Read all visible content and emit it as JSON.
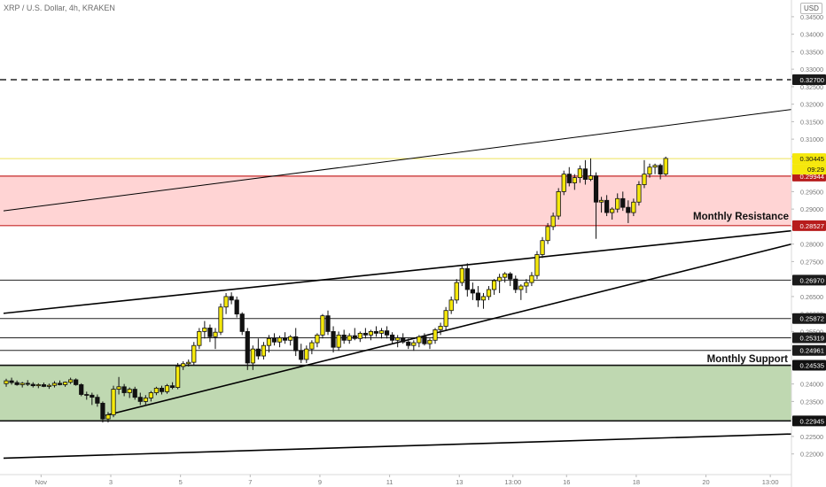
{
  "header": {
    "symbol_title": "XRP / U.S. Dollar, 4h, KRAKEN",
    "currency": "USD"
  },
  "colors": {
    "up": "#f5e80c",
    "down": "#f5e80c",
    "resistance_zone": "#ffcccc",
    "support_zone": "#b8d4a8",
    "resistance_line": "#c62828",
    "support_line": "#1b5e20",
    "last_price_bg": "#f5e80c"
  },
  "chart_data": {
    "type": "candlestick",
    "symbol": "XRP / U.S. Dollar",
    "interval": "4h",
    "exchange": "KRAKEN",
    "y_ticks": [
      "0.34500",
      "0.34000",
      "0.33500",
      "0.33000",
      "0.32500",
      "0.32000",
      "0.31500",
      "0.31000",
      "0.30500",
      "0.30000",
      "0.29500",
      "0.29000",
      "0.28500",
      "0.28000",
      "0.27500",
      "0.27000",
      "0.26500",
      "0.26000",
      "0.25500",
      "0.25000",
      "0.24500",
      "0.24000",
      "0.23500",
      "0.23000",
      "0.22500",
      "0.22000"
    ],
    "y_tick_values": [
      0.345,
      0.34,
      0.335,
      0.33,
      0.325,
      0.32,
      0.315,
      0.31,
      0.305,
      0.3,
      0.295,
      0.29,
      0.285,
      0.28,
      0.275,
      0.27,
      0.265,
      0.26,
      0.255,
      0.25,
      0.245,
      0.24,
      0.235,
      0.23,
      0.225,
      0.22
    ],
    "x_ticks": [
      "Nov",
      "3",
      "5",
      "7",
      "9",
      "11",
      "13",
      "13:00",
      "16",
      "18",
      "20",
      "13:00"
    ],
    "x_tick_slots": [
      7,
      20,
      33,
      46,
      59,
      72,
      85,
      95,
      105,
      118,
      131,
      143
    ],
    "price_levels": [
      {
        "label": "0.32700",
        "value": 0.327,
        "style": "dashed"
      },
      {
        "label": "0.29944",
        "value": 0.29944,
        "style": "resistance"
      },
      {
        "label": "0.28527",
        "value": 0.28527,
        "style": "resistance"
      },
      {
        "label": "0.26970",
        "value": 0.2697,
        "style": "solid"
      },
      {
        "label": "0.25872",
        "value": 0.25872,
        "style": "solid"
      },
      {
        "label": "0.25319",
        "value": 0.25319,
        "style": "solid"
      },
      {
        "label": "0.24961",
        "value": 0.24961,
        "style": "solid"
      },
      {
        "label": "0.24535",
        "value": 0.24535,
        "style": "support"
      },
      {
        "label": "0.22945",
        "value": 0.22945,
        "style": "support"
      }
    ],
    "last_price": {
      "label": "0.30445",
      "value": 0.30445,
      "countdown": "09:29"
    },
    "zones": [
      {
        "name": "Monthly Resistance",
        "low": 0.28527,
        "high": 0.29944
      },
      {
        "name": "Monthly Support",
        "low": 0.22945,
        "high": 0.24535
      }
    ],
    "trendlines": [
      {
        "name": "upper channel",
        "from": [
          0,
          0.2895
        ],
        "to": [
          147,
          0.3185
        ],
        "width": 1
      },
      {
        "name": "rising resistance",
        "from": [
          0,
          0.2602
        ],
        "to": [
          147,
          0.2838
        ],
        "width": 1.6
      },
      {
        "name": "rising support",
        "from": [
          19,
          0.231
        ],
        "to": [
          147,
          0.28
        ],
        "width": 1.6
      },
      {
        "name": "lower channel",
        "from": [
          0,
          0.2188
        ],
        "to": [
          147,
          0.2257
        ],
        "width": 1.6
      }
    ],
    "candles": [
      [
        0.2401,
        0.2415,
        0.2392,
        0.2409
      ],
      [
        0.2409,
        0.2418,
        0.2398,
        0.2404
      ],
      [
        0.2404,
        0.241,
        0.2395,
        0.2398
      ],
      [
        0.2398,
        0.2406,
        0.239,
        0.2402
      ],
      [
        0.2402,
        0.2411,
        0.2394,
        0.2399
      ],
      [
        0.2399,
        0.2405,
        0.239,
        0.2395
      ],
      [
        0.2395,
        0.2402,
        0.2388,
        0.2398
      ],
      [
        0.2398,
        0.2404,
        0.2391,
        0.2393
      ],
      [
        0.2393,
        0.2401,
        0.2386,
        0.2396
      ],
      [
        0.2396,
        0.2408,
        0.239,
        0.2402
      ],
      [
        0.2402,
        0.241,
        0.2396,
        0.2398
      ],
      [
        0.2398,
        0.2407,
        0.2392,
        0.2405
      ],
      [
        0.2405,
        0.2418,
        0.24,
        0.2412
      ],
      [
        0.2412,
        0.2416,
        0.2395,
        0.2398
      ],
      [
        0.2398,
        0.2402,
        0.2365,
        0.237
      ],
      [
        0.237,
        0.2378,
        0.2355,
        0.2368
      ],
      [
        0.2368,
        0.2375,
        0.234,
        0.2362
      ],
      [
        0.2362,
        0.237,
        0.2335,
        0.2345
      ],
      [
        0.2345,
        0.235,
        0.229,
        0.23
      ],
      [
        0.23,
        0.232,
        0.229,
        0.2312
      ],
      [
        0.2312,
        0.2395,
        0.2305,
        0.2385
      ],
      [
        0.2385,
        0.242,
        0.237,
        0.2392
      ],
      [
        0.2392,
        0.24,
        0.2365,
        0.2375
      ],
      [
        0.2375,
        0.239,
        0.236,
        0.2385
      ],
      [
        0.2385,
        0.2392,
        0.2355,
        0.2362
      ],
      [
        0.2362,
        0.2375,
        0.234,
        0.235
      ],
      [
        0.235,
        0.2368,
        0.2338,
        0.236
      ],
      [
        0.236,
        0.238,
        0.235,
        0.2375
      ],
      [
        0.2375,
        0.2392,
        0.2368,
        0.2388
      ],
      [
        0.2388,
        0.2395,
        0.237,
        0.2378
      ],
      [
        0.2378,
        0.24,
        0.2372,
        0.2395
      ],
      [
        0.2395,
        0.2405,
        0.2385,
        0.239
      ],
      [
        0.239,
        0.246,
        0.2385,
        0.245
      ],
      [
        0.245,
        0.2465,
        0.244,
        0.2458
      ],
      [
        0.2458,
        0.247,
        0.245,
        0.2462
      ],
      [
        0.2462,
        0.252,
        0.2455,
        0.251
      ],
      [
        0.251,
        0.256,
        0.25,
        0.255
      ],
      [
        0.255,
        0.258,
        0.253,
        0.256
      ],
      [
        0.256,
        0.257,
        0.252,
        0.2535
      ],
      [
        0.2535,
        0.256,
        0.25,
        0.2548
      ],
      [
        0.2548,
        0.263,
        0.254,
        0.262
      ],
      [
        0.262,
        0.266,
        0.26,
        0.265
      ],
      [
        0.265,
        0.2662,
        0.2628,
        0.264
      ],
      [
        0.264,
        0.265,
        0.259,
        0.26
      ],
      [
        0.26,
        0.2605,
        0.254,
        0.255
      ],
      [
        0.255,
        0.256,
        0.244,
        0.246
      ],
      [
        0.246,
        0.251,
        0.244,
        0.25
      ],
      [
        0.25,
        0.253,
        0.247,
        0.248
      ],
      [
        0.248,
        0.252,
        0.247,
        0.251
      ],
      [
        0.251,
        0.254,
        0.249,
        0.253
      ],
      [
        0.253,
        0.2545,
        0.251,
        0.252
      ],
      [
        0.252,
        0.2538,
        0.2505,
        0.2532
      ],
      [
        0.2532,
        0.2548,
        0.2515,
        0.2525
      ],
      [
        0.2525,
        0.254,
        0.251,
        0.2535
      ],
      [
        0.2535,
        0.256,
        0.248,
        0.2495
      ],
      [
        0.2495,
        0.2515,
        0.246,
        0.247
      ],
      [
        0.247,
        0.251,
        0.246,
        0.25
      ],
      [
        0.25,
        0.2525,
        0.2485,
        0.2518
      ],
      [
        0.2518,
        0.2545,
        0.2505,
        0.254
      ],
      [
        0.254,
        0.26,
        0.253,
        0.2595
      ],
      [
        0.2595,
        0.261,
        0.254,
        0.255
      ],
      [
        0.255,
        0.2565,
        0.249,
        0.2505
      ],
      [
        0.2505,
        0.255,
        0.2495,
        0.254
      ],
      [
        0.254,
        0.2555,
        0.2515,
        0.2525
      ],
      [
        0.2525,
        0.2545,
        0.2515,
        0.2538
      ],
      [
        0.2538,
        0.256,
        0.2525,
        0.253
      ],
      [
        0.253,
        0.255,
        0.252,
        0.2545
      ],
      [
        0.2545,
        0.256,
        0.253,
        0.254
      ],
      [
        0.254,
        0.2555,
        0.2525,
        0.255
      ],
      [
        0.255,
        0.2565,
        0.2535,
        0.2545
      ],
      [
        0.2545,
        0.256,
        0.253,
        0.2552
      ],
      [
        0.2552,
        0.2565,
        0.253,
        0.254
      ],
      [
        0.254,
        0.2548,
        0.2515,
        0.2525
      ],
      [
        0.2525,
        0.254,
        0.2505,
        0.2532
      ],
      [
        0.2532,
        0.2545,
        0.2515,
        0.252
      ],
      [
        0.252,
        0.253,
        0.25,
        0.251
      ],
      [
        0.251,
        0.2525,
        0.2495,
        0.2518
      ],
      [
        0.2518,
        0.254,
        0.2505,
        0.2535
      ],
      [
        0.2535,
        0.2545,
        0.251,
        0.2515
      ],
      [
        0.2515,
        0.253,
        0.25,
        0.2525
      ],
      [
        0.2525,
        0.256,
        0.2515,
        0.2555
      ],
      [
        0.2555,
        0.2575,
        0.254,
        0.2565
      ],
      [
        0.2565,
        0.262,
        0.2555,
        0.261
      ],
      [
        0.261,
        0.265,
        0.26,
        0.264
      ],
      [
        0.264,
        0.27,
        0.263,
        0.269
      ],
      [
        0.269,
        0.274,
        0.268,
        0.273
      ],
      [
        0.273,
        0.2745,
        0.265,
        0.267
      ],
      [
        0.267,
        0.269,
        0.264,
        0.266
      ],
      [
        0.266,
        0.268,
        0.262,
        0.264
      ],
      [
        0.264,
        0.266,
        0.2615,
        0.265
      ],
      [
        0.265,
        0.268,
        0.264,
        0.267
      ],
      [
        0.267,
        0.27,
        0.2655,
        0.2695
      ],
      [
        0.2695,
        0.2715,
        0.266,
        0.2705
      ],
      [
        0.2705,
        0.272,
        0.269,
        0.2715
      ],
      [
        0.2715,
        0.272,
        0.268,
        0.27
      ],
      [
        0.27,
        0.271,
        0.266,
        0.267
      ],
      [
        0.267,
        0.2685,
        0.264,
        0.268
      ],
      [
        0.268,
        0.27,
        0.266,
        0.269
      ],
      [
        0.269,
        0.272,
        0.268,
        0.271
      ],
      [
        0.271,
        0.278,
        0.27,
        0.277
      ],
      [
        0.277,
        0.282,
        0.276,
        0.281
      ],
      [
        0.281,
        0.286,
        0.28,
        0.285
      ],
      [
        0.285,
        0.289,
        0.284,
        0.288
      ],
      [
        0.288,
        0.296,
        0.287,
        0.295
      ],
      [
        0.295,
        0.301,
        0.294,
        0.3
      ],
      [
        0.3,
        0.302,
        0.2965,
        0.2975
      ],
      [
        0.2975,
        0.3,
        0.2955,
        0.299
      ],
      [
        0.299,
        0.3025,
        0.2975,
        0.3015
      ],
      [
        0.3015,
        0.304,
        0.297,
        0.2985
      ],
      [
        0.2985,
        0.3045,
        0.298,
        0.2995
      ],
      [
        0.2995,
        0.3005,
        0.2815,
        0.292
      ],
      [
        0.292,
        0.2935,
        0.289,
        0.2925
      ],
      [
        0.2925,
        0.294,
        0.288,
        0.289
      ],
      [
        0.289,
        0.2905,
        0.287,
        0.29
      ],
      [
        0.29,
        0.2945,
        0.289,
        0.293
      ],
      [
        0.293,
        0.295,
        0.2895,
        0.2905
      ],
      [
        0.2905,
        0.2925,
        0.286,
        0.289
      ],
      [
        0.289,
        0.293,
        0.288,
        0.292
      ],
      [
        0.292,
        0.298,
        0.291,
        0.297
      ],
      [
        0.297,
        0.304,
        0.296,
        0.3
      ],
      [
        0.3,
        0.303,
        0.299,
        0.302
      ],
      [
        0.302,
        0.303,
        0.3,
        0.3025
      ],
      [
        0.3025,
        0.303,
        0.2985,
        0.3
      ],
      [
        0.3,
        0.305,
        0.2995,
        0.3045
      ]
    ],
    "candle_start_slot": 0,
    "slot_count": 148
  },
  "annotations": {
    "resistance_label": "Monthly Resistance",
    "support_label": "Monthly Support"
  }
}
